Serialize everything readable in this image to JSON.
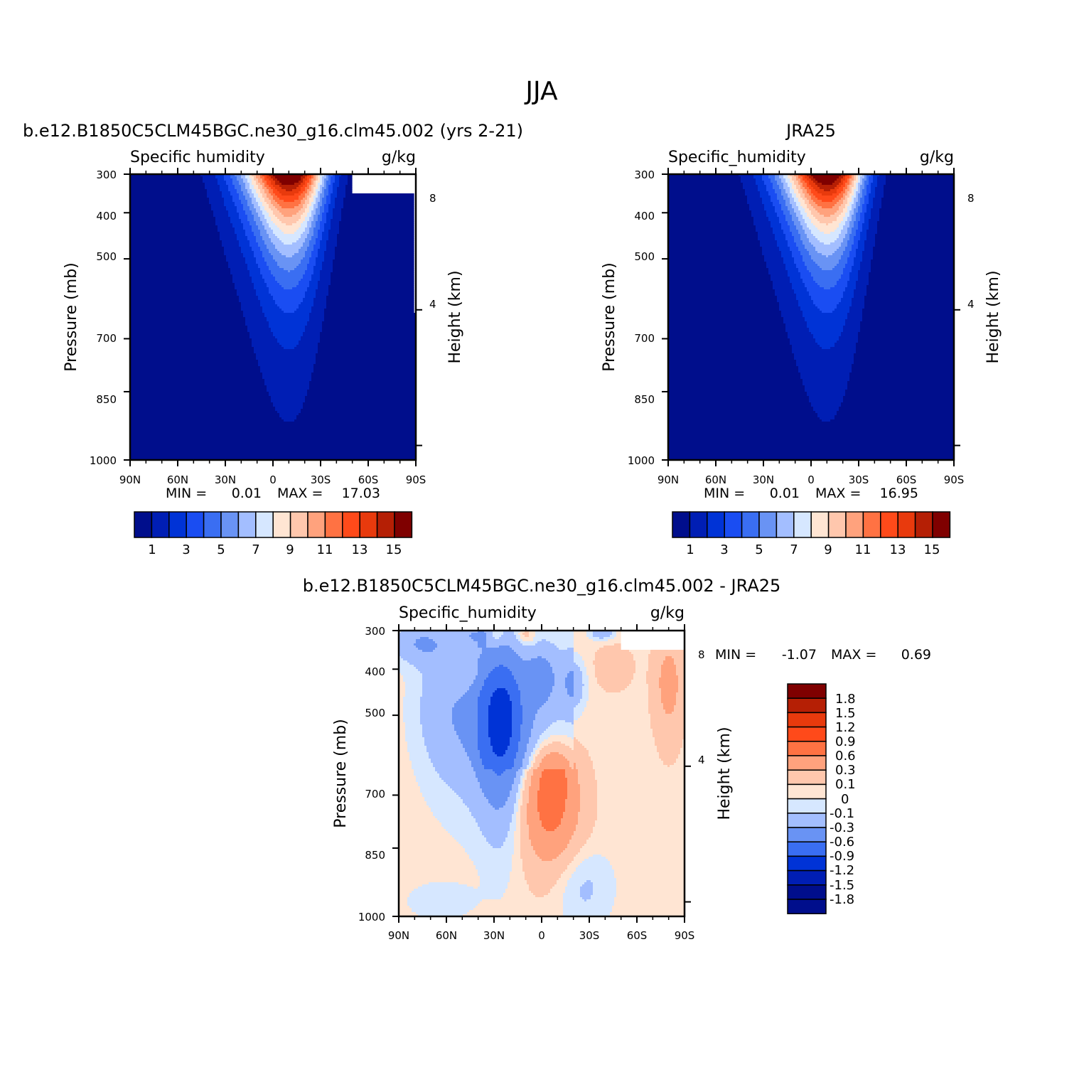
{
  "figure_title": "JJA",
  "colors": {
    "absolute": [
      "#000e8c",
      "#001eb4",
      "#0033d6",
      "#1a4df2",
      "#3a6ef2",
      "#6993f4",
      "#a3beff",
      "#d6e7ff",
      "#ffe5d3",
      "#ffc7ad",
      "#ffa27d",
      "#ff7243",
      "#ff4a1a",
      "#e83a0d",
      "#b51f05",
      "#7f0000"
    ],
    "difference": [
      "#000e8c",
      "#001eb4",
      "#0033d6",
      "#3a6ef2",
      "#6993f4",
      "#a3beff",
      "#d6e7ff",
      "#ffe5d3",
      "#ffc7ad",
      "#ffa27d",
      "#ff7243",
      "#ff4a1a",
      "#e83a0d",
      "#b51f05",
      "#7f0000"
    ]
  },
  "chart_data": [
    {
      "type": "heatmap",
      "panel": "model",
      "title": "b.e12.B1850C5CLM45BGC.ne30_g16.clm45.002 (yrs 2-21)",
      "variable": "Specific humidity",
      "units": "g/kg",
      "ylabel": "Pressure (mb)",
      "ylabel_right": "Height (km)",
      "x_ticks": [
        "90N",
        "60N",
        "30N",
        "0",
        "30S",
        "60S",
        "90S"
      ],
      "y_ticks": [
        "300",
        "400",
        "500",
        "700",
        "850",
        "1000"
      ],
      "y2_ticks": [
        "8",
        "4"
      ],
      "stats": {
        "min_label": "MIN =",
        "min": "0.01",
        "max_label": "MAX =",
        "max": "17.03"
      },
      "colorbar_labels": [
        "1",
        "3",
        "5",
        "7",
        "9",
        "11",
        "13",
        "15"
      ],
      "ylim": [
        1000,
        300
      ],
      "peak_lat": -10,
      "peak_value": 17.03
    },
    {
      "type": "heatmap",
      "panel": "obs",
      "title": "JRA25",
      "variable": "Specific_humidity",
      "units": "g/kg",
      "ylabel": "Pressure (mb)",
      "ylabel_right": "Height (km)",
      "x_ticks": [
        "90N",
        "60N",
        "30N",
        "0",
        "30S",
        "60S",
        "90S"
      ],
      "y_ticks": [
        "300",
        "400",
        "500",
        "700",
        "850",
        "1000"
      ],
      "y2_ticks": [
        "8",
        "4"
      ],
      "stats": {
        "min_label": "MIN =",
        "min": "0.01",
        "max_label": "MAX =",
        "max": "16.95"
      },
      "colorbar_labels": [
        "1",
        "3",
        "5",
        "7",
        "9",
        "11",
        "13",
        "15"
      ],
      "ylim": [
        1000,
        300
      ],
      "peak_lat": -10,
      "peak_value": 16.95
    },
    {
      "type": "heatmap",
      "panel": "difference",
      "title": "b.e12.B1850C5CLM45BGC.ne30_g16.clm45.002 - JRA25",
      "variable": "Specific_humidity",
      "units": "g/kg",
      "ylabel": "Pressure (mb)",
      "ylabel_right": "Height (km)",
      "x_ticks": [
        "90N",
        "60N",
        "30N",
        "0",
        "30S",
        "60S",
        "90S"
      ],
      "y_ticks": [
        "300",
        "400",
        "500",
        "700",
        "850",
        "1000"
      ],
      "y2_ticks": [
        "8",
        "4"
      ],
      "stats": {
        "min_label": "MIN =",
        "min": "-1.07",
        "max_label": "MAX =",
        "max": "0.69"
      },
      "colorbar_labels": [
        "1.8",
        "1.5",
        "1.2",
        "0.9",
        "0.6",
        "0.3",
        "0.1",
        "0",
        "-0.1",
        "-0.3",
        "-0.6",
        "-0.9",
        "-1.2",
        "-1.5",
        "-1.8"
      ],
      "ylim": [
        1000,
        300
      ]
    }
  ]
}
